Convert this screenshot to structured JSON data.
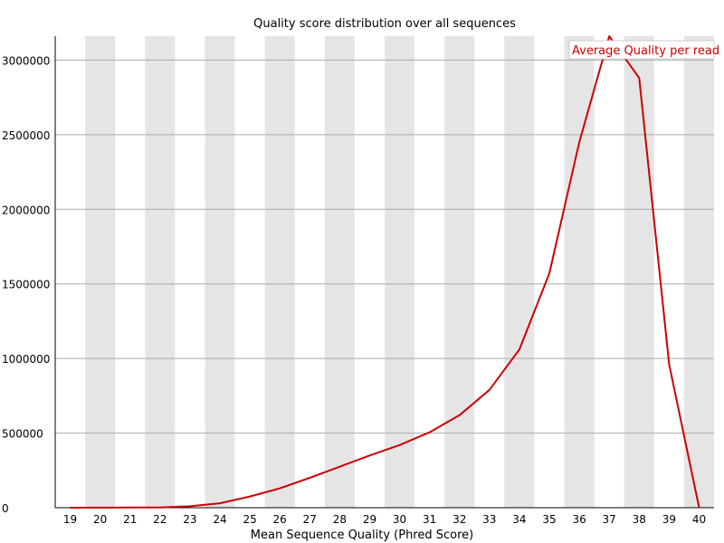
{
  "chart_data": {
    "type": "line",
    "title": "Quality score distribution over all sequences",
    "xlabel": "Mean Sequence Quality (Phred Score)",
    "ylabel": "",
    "x": [
      19,
      20,
      21,
      22,
      23,
      24,
      25,
      26,
      27,
      28,
      29,
      30,
      31,
      32,
      33,
      34,
      35,
      36,
      37,
      38,
      39,
      40
    ],
    "xlim": [
      19,
      40
    ],
    "ylim": [
      0,
      3160000
    ],
    "yticks": [
      0,
      500000,
      1000000,
      1500000,
      2000000,
      2500000,
      3000000
    ],
    "ytick_labels": [
      "0",
      "500000",
      "1000000",
      "1500000",
      "2000000",
      "2500000",
      "3000000"
    ],
    "series": [
      {
        "name": "Average Quality per read",
        "color": "#cc0000",
        "values": [
          0,
          500,
          1000,
          2000,
          10000,
          30000,
          75000,
          130000,
          200000,
          275000,
          350000,
          420000,
          505000,
          620000,
          790000,
          1060000,
          1570000,
          2450000,
          3160000,
          2880000,
          960000,
          0
        ]
      }
    ],
    "legend": "top-right",
    "grid": true,
    "band_color": "#e5e5e5",
    "grid_color": "#aaaaaa"
  }
}
